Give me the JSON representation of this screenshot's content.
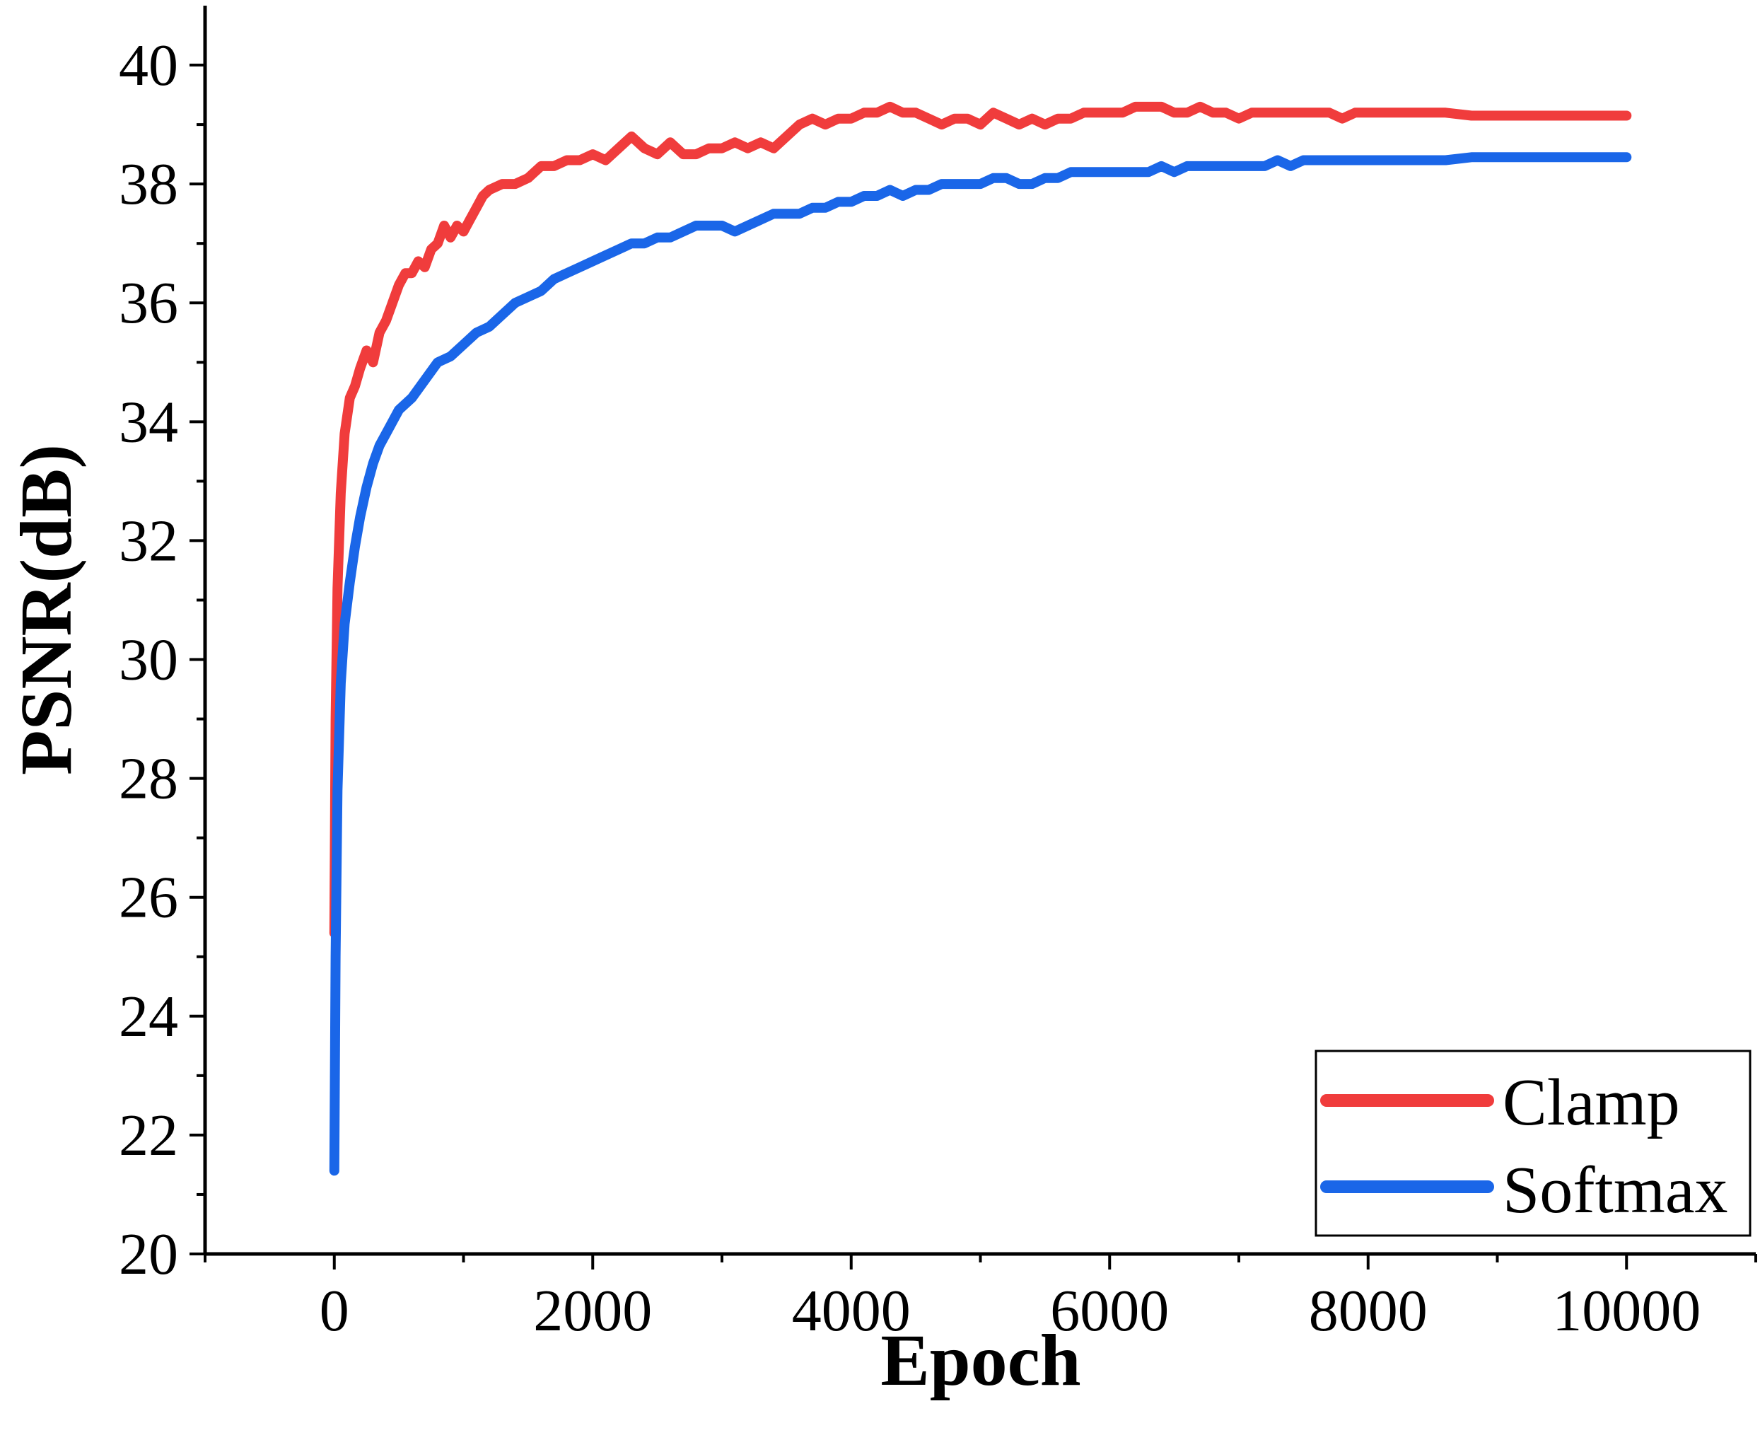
{
  "chart_data": {
    "type": "line",
    "xlabel": "Epoch",
    "ylabel": "PSNR(dB)",
    "xlim": [
      -1000,
      11000
    ],
    "ylim": [
      20,
      41
    ],
    "xticks": [
      0,
      2000,
      4000,
      6000,
      8000,
      10000
    ],
    "xtick_labels": [
      "0",
      "2000",
      "4000",
      "6000",
      "8000",
      "10000"
    ],
    "yticks": [
      20,
      22,
      24,
      26,
      28,
      30,
      32,
      34,
      36,
      38,
      40
    ],
    "ytick_labels": [
      "20",
      "22",
      "24",
      "26",
      "28",
      "30",
      "32",
      "34",
      "36",
      "38",
      "40"
    ],
    "legend_position": "bottom-right",
    "grid": false,
    "series": [
      {
        "name": "Clamp",
        "color": "#f03c3c",
        "x": [
          0,
          10,
          25,
          50,
          80,
          120,
          160,
          200,
          250,
          300,
          350,
          400,
          450,
          500,
          550,
          600,
          650,
          700,
          750,
          800,
          850,
          900,
          950,
          1000,
          1050,
          1100,
          1150,
          1200,
          1300,
          1400,
          1500,
          1600,
          1700,
          1800,
          1900,
          2000,
          2100,
          2200,
          2300,
          2400,
          2500,
          2600,
          2700,
          2800,
          2900,
          3000,
          3100,
          3200,
          3300,
          3400,
          3500,
          3600,
          3700,
          3800,
          3900,
          4000,
          4100,
          4200,
          4300,
          4400,
          4500,
          4600,
          4700,
          4800,
          4900,
          5000,
          5100,
          5200,
          5300,
          5400,
          5500,
          5600,
          5700,
          5800,
          5900,
          6000,
          6100,
          6200,
          6300,
          6400,
          6500,
          6600,
          6700,
          6800,
          6900,
          7000,
          7100,
          7200,
          7300,
          7400,
          7500,
          7600,
          7700,
          7800,
          7900,
          8000,
          8200,
          8400,
          8600,
          8800,
          9000,
          9200,
          9400,
          9600,
          9800,
          10000
        ],
        "y": [
          25.4,
          29.0,
          31.2,
          32.8,
          33.8,
          34.4,
          34.6,
          34.9,
          35.2,
          35.0,
          35.5,
          35.7,
          36.0,
          36.3,
          36.5,
          36.5,
          36.7,
          36.6,
          36.9,
          37.0,
          37.3,
          37.1,
          37.3,
          37.2,
          37.4,
          37.6,
          37.8,
          37.9,
          38.0,
          38.0,
          38.1,
          38.3,
          38.3,
          38.4,
          38.4,
          38.5,
          38.4,
          38.6,
          38.8,
          38.6,
          38.5,
          38.7,
          38.5,
          38.5,
          38.6,
          38.6,
          38.7,
          38.6,
          38.7,
          38.6,
          38.8,
          39.0,
          39.1,
          39.0,
          39.1,
          39.1,
          39.2,
          39.2,
          39.3,
          39.2,
          39.2,
          39.1,
          39.0,
          39.1,
          39.1,
          39.0,
          39.2,
          39.1,
          39.0,
          39.1,
          39.0,
          39.1,
          39.1,
          39.2,
          39.2,
          39.2,
          39.2,
          39.3,
          39.3,
          39.3,
          39.2,
          39.2,
          39.3,
          39.2,
          39.2,
          39.1,
          39.2,
          39.2,
          39.2,
          39.2,
          39.2,
          39.2,
          39.2,
          39.1,
          39.2,
          39.2,
          39.2,
          39.2,
          39.2,
          39.15,
          39.15,
          39.15,
          39.15,
          39.15,
          39.15,
          39.15
        ]
      },
      {
        "name": "Softmax",
        "color": "#1a66e8",
        "x": [
          0,
          10,
          25,
          50,
          80,
          120,
          160,
          200,
          250,
          300,
          350,
          400,
          450,
          500,
          600,
          700,
          800,
          900,
          1000,
          1100,
          1200,
          1300,
          1400,
          1500,
          1600,
          1700,
          1800,
          1900,
          2000,
          2100,
          2200,
          2300,
          2400,
          2500,
          2600,
          2700,
          2800,
          2900,
          3000,
          3100,
          3200,
          3300,
          3400,
          3500,
          3600,
          3700,
          3800,
          3900,
          4000,
          4100,
          4200,
          4300,
          4400,
          4500,
          4600,
          4700,
          4800,
          4900,
          5000,
          5100,
          5200,
          5300,
          5400,
          5500,
          5600,
          5700,
          5800,
          5900,
          6000,
          6100,
          6200,
          6300,
          6400,
          6500,
          6600,
          6700,
          6800,
          6900,
          7000,
          7100,
          7200,
          7300,
          7400,
          7500,
          7600,
          7700,
          7800,
          8000,
          8200,
          8400,
          8600,
          8800,
          9000,
          9200,
          9400,
          9600,
          9800,
          10000
        ],
        "y": [
          21.4,
          25.0,
          27.8,
          29.6,
          30.6,
          31.3,
          31.9,
          32.4,
          32.9,
          33.3,
          33.6,
          33.8,
          34.0,
          34.2,
          34.4,
          34.7,
          35.0,
          35.1,
          35.3,
          35.5,
          35.6,
          35.8,
          36.0,
          36.1,
          36.2,
          36.4,
          36.5,
          36.6,
          36.7,
          36.8,
          36.9,
          37.0,
          37.0,
          37.1,
          37.1,
          37.2,
          37.3,
          37.3,
          37.3,
          37.2,
          37.3,
          37.4,
          37.5,
          37.5,
          37.5,
          37.6,
          37.6,
          37.7,
          37.7,
          37.8,
          37.8,
          37.9,
          37.8,
          37.9,
          37.9,
          38.0,
          38.0,
          38.0,
          38.0,
          38.1,
          38.1,
          38.0,
          38.0,
          38.1,
          38.1,
          38.2,
          38.2,
          38.2,
          38.2,
          38.2,
          38.2,
          38.2,
          38.3,
          38.2,
          38.3,
          38.3,
          38.3,
          38.3,
          38.3,
          38.3,
          38.3,
          38.4,
          38.3,
          38.4,
          38.4,
          38.4,
          38.4,
          38.4,
          38.4,
          38.4,
          38.4,
          38.45,
          38.45,
          38.45,
          38.45,
          38.45,
          38.45,
          38.45
        ]
      }
    ]
  }
}
